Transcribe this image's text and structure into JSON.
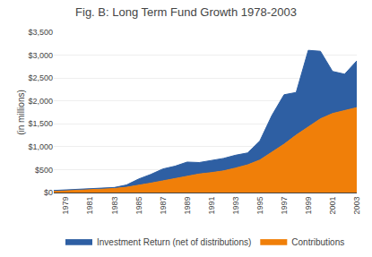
{
  "chart_data": {
    "type": "area",
    "stacked": true,
    "title": "Fig. B: Long Term Fund Growth 1978-2003",
    "ylabel": "(in millions)",
    "x": [
      1978,
      1979,
      1980,
      1981,
      1982,
      1983,
      1984,
      1985,
      1986,
      1987,
      1988,
      1989,
      1990,
      1991,
      1992,
      1993,
      1994,
      1995,
      1996,
      1997,
      1998,
      1999,
      2000,
      2001,
      2002,
      2003
    ],
    "series": [
      {
        "name": "Contributions",
        "color": "#f07f09",
        "values": [
          30,
          42,
          50,
          60,
          72,
          90,
          115,
          155,
          205,
          255,
          305,
          360,
          405,
          435,
          472,
          535,
          605,
          710,
          875,
          1055,
          1255,
          1435,
          1610,
          1725,
          1785,
          1855
        ]
      },
      {
        "name": "Investment Return (net of distributions)",
        "color": "#2e5fa3",
        "values": [
          15,
          16,
          18,
          15,
          16,
          20,
          50,
          140,
          190,
          260,
          270,
          305,
          250,
          260,
          273,
          280,
          260,
          415,
          810,
          1080,
          930,
          1670,
          1475,
          920,
          800,
          1020
        ]
      }
    ],
    "xlim": [
      1978,
      2003
    ],
    "xticks": [
      1979,
      1981,
      1983,
      1985,
      1987,
      1989,
      1991,
      1993,
      1995,
      1997,
      1999,
      2001,
      2003
    ],
    "ylim": [
      0,
      3500
    ],
    "yticks": [
      {
        "value": 0,
        "label": "$0"
      },
      {
        "value": 500,
        "label": "$500"
      },
      {
        "value": 1000,
        "label": "$1,000"
      },
      {
        "value": 1500,
        "label": "$1,500"
      },
      {
        "value": 2000,
        "label": "$2,000"
      },
      {
        "value": 2500,
        "label": "$2,500"
      },
      {
        "value": 3000,
        "label": "$3,000"
      },
      {
        "value": 3500,
        "label": "$3,500"
      }
    ],
    "grid": true,
    "legend": "bottom"
  }
}
